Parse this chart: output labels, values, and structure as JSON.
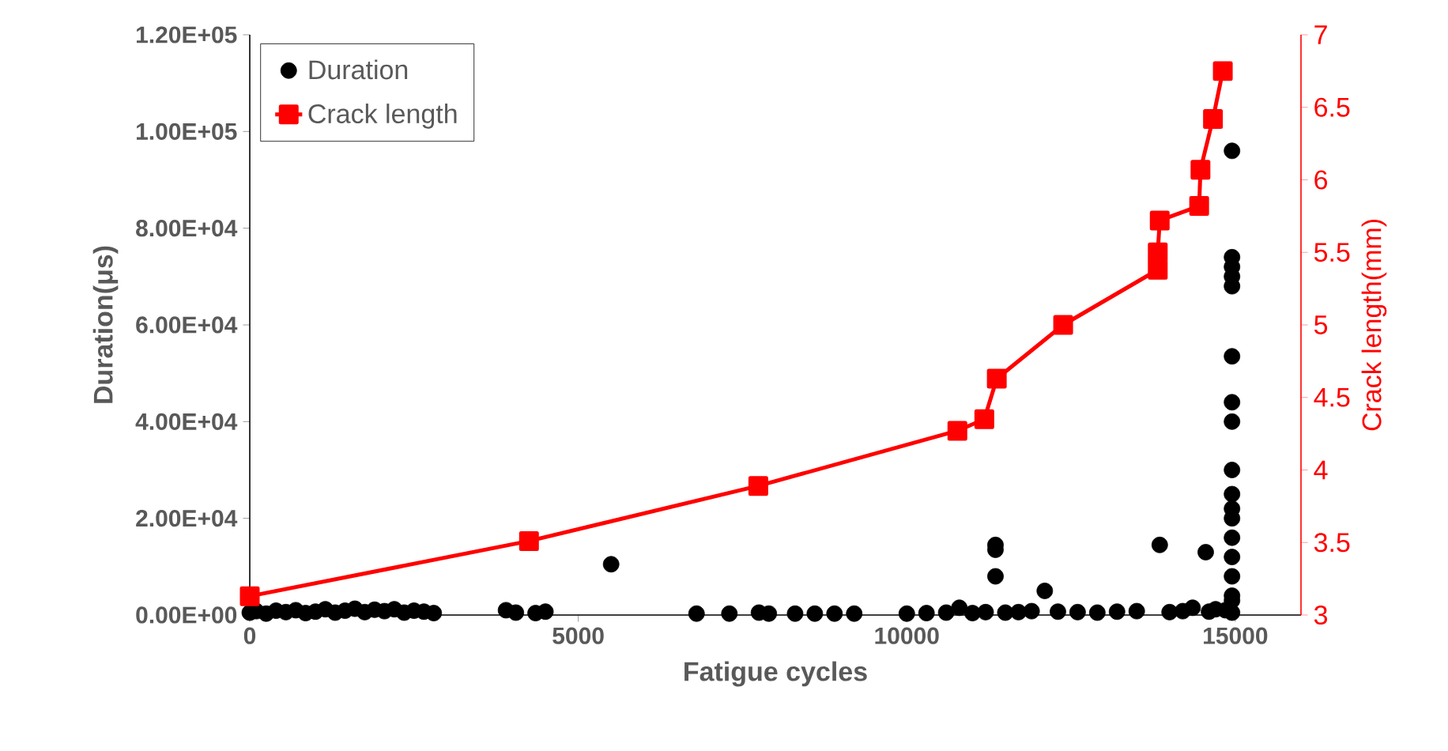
{
  "chart_data": {
    "type": "scatter",
    "xlabel": "Fatigue cycles",
    "ylabel": "Duration(μs)",
    "y2label": "Crack length(mm)",
    "xlim": [
      0,
      16000
    ],
    "xticks": [
      0,
      5000,
      10000,
      15000
    ],
    "ylim": [
      0,
      120000
    ],
    "yticks": [
      {
        "value": 0,
        "label": "0.00E+00"
      },
      {
        "value": 20000,
        "label": "2.00E+04"
      },
      {
        "value": 40000,
        "label": "4.00E+04"
      },
      {
        "value": 60000,
        "label": "6.00E+04"
      },
      {
        "value": 80000,
        "label": "8.00E+04"
      },
      {
        "value": 100000,
        "label": "1.00E+05"
      },
      {
        "value": 120000,
        "label": "1.20E+05"
      }
    ],
    "y2lim": [
      3,
      7
    ],
    "y2ticks": [
      3,
      3.5,
      4,
      4.5,
      5,
      5.5,
      6,
      6.5,
      7
    ],
    "legend": "top left",
    "series": [
      {
        "name": "Duration",
        "marker": "circle",
        "color": "#000000",
        "x": [
          0,
          100,
          250,
          400,
          550,
          700,
          850,
          1000,
          1150,
          1300,
          1450,
          1600,
          1750,
          1900,
          2050,
          2200,
          2350,
          2500,
          2650,
          2800,
          3900,
          4050,
          4350,
          4500,
          5500,
          6800,
          7300,
          7750,
          7900,
          8300,
          8600,
          8900,
          9200,
          10000,
          10300,
          10600,
          10800,
          11000,
          11200,
          11350,
          11350,
          11350,
          11500,
          11700,
          11900,
          12100,
          12300,
          12600,
          12900,
          13200,
          13500,
          13850,
          14000,
          14200,
          14350,
          14550,
          14600,
          14700,
          14850,
          14950,
          14950,
          14950,
          14950,
          14950,
          14950,
          14950,
          14950,
          14950,
          14950,
          14950,
          14950,
          14950,
          14950,
          14950,
          14950,
          14950,
          14950
        ],
        "values": [
          500,
          800,
          300,
          900,
          600,
          1000,
          400,
          700,
          1200,
          500,
          900,
          1300,
          600,
          1100,
          800,
          1200,
          500,
          900,
          700,
          400,
          1000,
          500,
          400,
          700,
          10500,
          300,
          300,
          500,
          300,
          300,
          300,
          300,
          300,
          300,
          400,
          500,
          1500,
          400,
          600,
          14500,
          13500,
          8000,
          500,
          600,
          800,
          5000,
          700,
          600,
          500,
          700,
          800,
          14500,
          600,
          800,
          1500,
          13000,
          700,
          1200,
          1000,
          96000,
          74000,
          72000,
          70000,
          68000,
          53500,
          44000,
          40000,
          30000,
          25000,
          22000,
          20000,
          16000,
          12000,
          8000,
          4000,
          500,
          3000
        ]
      },
      {
        "name": "Crack length",
        "type": "line",
        "axis": "y2",
        "marker": "square",
        "line_style": "solid",
        "color": "#ff0000",
        "x": [
          0,
          4250,
          7740,
          10770,
          11180,
          11370,
          12380,
          13820,
          13820,
          13850,
          14450,
          14470,
          14660,
          14810
        ],
        "values": [
          3.13,
          3.51,
          3.89,
          4.27,
          4.35,
          4.63,
          5.0,
          5.38,
          5.5,
          5.72,
          5.82,
          6.07,
          6.42,
          6.75
        ]
      }
    ]
  }
}
